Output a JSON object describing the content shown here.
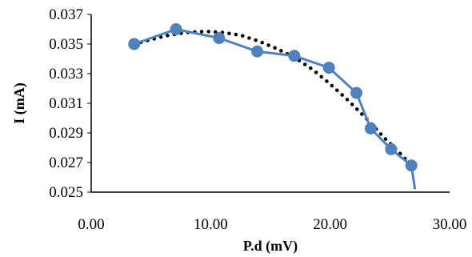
{
  "chart_data": {
    "type": "scatter",
    "title": "",
    "xlabel": "P.d (mV)",
    "ylabel": "I (mA)",
    "xlim": [
      0,
      30
    ],
    "ylim": [
      0.025,
      0.037
    ],
    "x_ticks": [
      "0.00",
      "10.00",
      "20.00",
      "30.00"
    ],
    "y_ticks": [
      "0.025",
      "0.027",
      "0.029",
      "0.031",
      "0.033",
      "0.035",
      "0.037"
    ],
    "grid": false,
    "legend": "none",
    "series": [
      {
        "style": "line-markers",
        "color": "#4f81bd",
        "points": [
          {
            "x": 3.6,
            "y": 0.035
          },
          {
            "x": 7.1,
            "y": 0.036
          },
          {
            "x": 10.7,
            "y": 0.0354
          },
          {
            "x": 13.9,
            "y": 0.0345
          },
          {
            "x": 17.0,
            "y": 0.0342
          },
          {
            "x": 19.9,
            "y": 0.0334
          },
          {
            "x": 22.2,
            "y": 0.0317
          },
          {
            "x": 23.4,
            "y": 0.0293
          },
          {
            "x": 25.1,
            "y": 0.0279
          },
          {
            "x": 26.8,
            "y": 0.0268
          },
          {
            "x": 27.1,
            "y": 0.0252
          }
        ]
      },
      {
        "style": "dotted-trendline",
        "color": "#000000",
        "points": [
          {
            "x": 3.6,
            "y": 0.035
          },
          {
            "x": 5.0,
            "y": 0.0353
          },
          {
            "x": 6.5,
            "y": 0.0356
          },
          {
            "x": 8.0,
            "y": 0.03578
          },
          {
            "x": 9.5,
            "y": 0.03585
          },
          {
            "x": 11.0,
            "y": 0.03578
          },
          {
            "x": 12.5,
            "y": 0.0356
          },
          {
            "x": 14.0,
            "y": 0.0352
          },
          {
            "x": 15.5,
            "y": 0.0347
          },
          {
            "x": 17.0,
            "y": 0.0341
          },
          {
            "x": 18.5,
            "y": 0.0333
          },
          {
            "x": 20.0,
            "y": 0.0323
          },
          {
            "x": 21.5,
            "y": 0.0312
          },
          {
            "x": 23.0,
            "y": 0.03
          },
          {
            "x": 24.5,
            "y": 0.0287
          },
          {
            "x": 26.0,
            "y": 0.0275
          },
          {
            "x": 26.8,
            "y": 0.0268
          }
        ]
      }
    ]
  }
}
